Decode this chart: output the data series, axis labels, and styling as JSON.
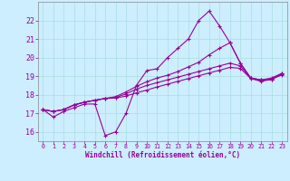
{
  "bg_color": "#cceeff",
  "line_color": "#990099",
  "grid_color": "#aadddd",
  "xlabel": "Windchill (Refroidissement éolien,°C)",
  "x_values": [
    0,
    1,
    2,
    3,
    4,
    5,
    6,
    7,
    8,
    9,
    10,
    11,
    12,
    13,
    14,
    15,
    16,
    17,
    18,
    19,
    20,
    21,
    22,
    23
  ],
  "line1": [
    17.2,
    16.8,
    17.1,
    17.3,
    17.5,
    17.5,
    15.8,
    16.0,
    17.0,
    18.5,
    19.3,
    19.4,
    20.0,
    20.5,
    21.0,
    22.0,
    22.5,
    21.7,
    20.8,
    19.7,
    18.9,
    18.8,
    18.8,
    19.15
  ],
  "line2": [
    17.2,
    17.1,
    17.2,
    17.45,
    17.6,
    17.7,
    17.8,
    17.9,
    18.15,
    18.45,
    18.7,
    18.9,
    19.05,
    19.25,
    19.5,
    19.75,
    20.15,
    20.5,
    20.8,
    19.7,
    18.9,
    18.8,
    18.9,
    19.15
  ],
  "line3": [
    17.2,
    17.1,
    17.2,
    17.45,
    17.6,
    17.7,
    17.8,
    17.85,
    18.05,
    18.3,
    18.5,
    18.65,
    18.8,
    18.95,
    19.1,
    19.25,
    19.4,
    19.55,
    19.7,
    19.55,
    18.9,
    18.75,
    18.85,
    19.1
  ],
  "line4": [
    17.2,
    17.1,
    17.2,
    17.45,
    17.6,
    17.7,
    17.8,
    17.82,
    17.93,
    18.1,
    18.25,
    18.42,
    18.57,
    18.72,
    18.87,
    19.02,
    19.17,
    19.32,
    19.47,
    19.42,
    18.87,
    18.72,
    18.83,
    19.07
  ],
  "ylim": [
    15.5,
    23.0
  ],
  "yticks": [
    16,
    17,
    18,
    19,
    20,
    21,
    22
  ],
  "xticks": [
    0,
    1,
    2,
    3,
    4,
    5,
    6,
    7,
    8,
    9,
    10,
    11,
    12,
    13,
    14,
    15,
    16,
    17,
    18,
    19,
    20,
    21,
    22,
    23
  ]
}
